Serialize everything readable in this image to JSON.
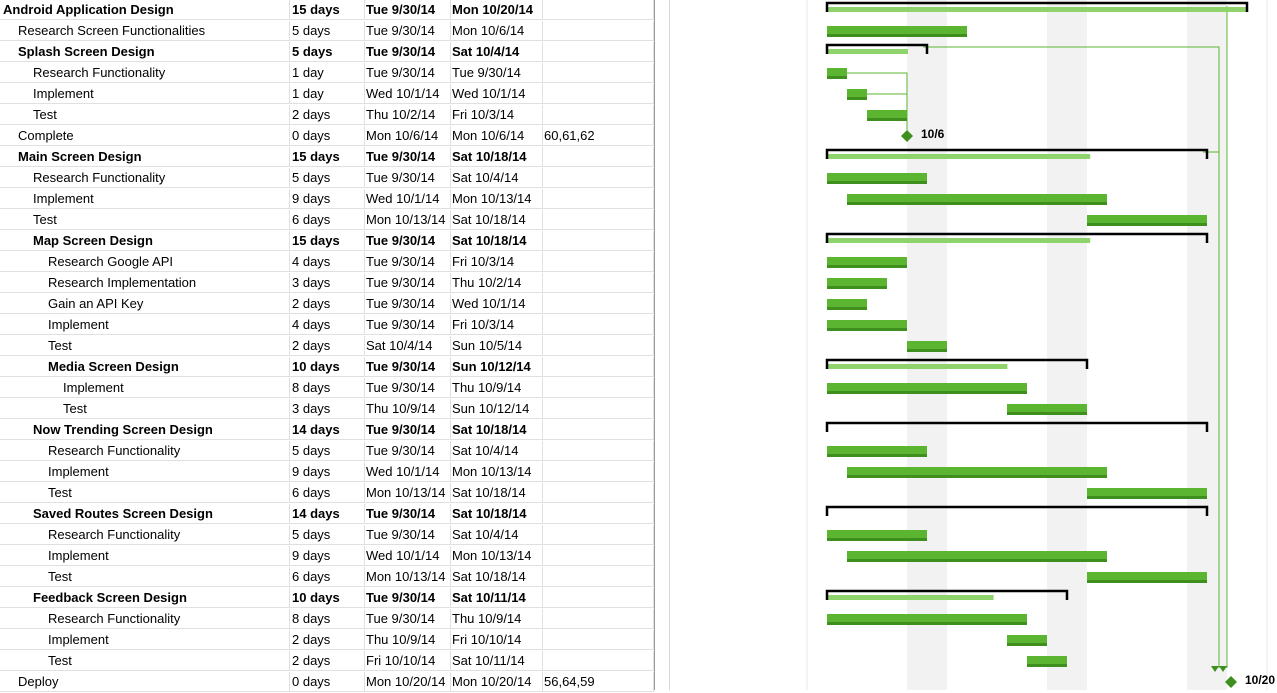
{
  "tasks": [
    {
      "name": "Android Application Design",
      "indent": 0,
      "summary": true,
      "duration": "15 days",
      "start": "Tue 9/30/14",
      "finish": "Mon 10/20/14",
      "pred": ""
    },
    {
      "name": "Research Screen Functionalities",
      "indent": 1,
      "summary": false,
      "duration": "5 days",
      "start": "Tue 9/30/14",
      "finish": "Mon 10/6/14",
      "pred": ""
    },
    {
      "name": "Splash Screen Design",
      "indent": 1,
      "summary": true,
      "duration": "5 days",
      "start": "Tue 9/30/14",
      "finish": "Sat 10/4/14",
      "pred": ""
    },
    {
      "name": "Research Functionality",
      "indent": 2,
      "summary": false,
      "duration": "1 day",
      "start": "Tue 9/30/14",
      "finish": "Tue 9/30/14",
      "pred": ""
    },
    {
      "name": "Implement",
      "indent": 2,
      "summary": false,
      "duration": "1 day",
      "start": "Wed 10/1/14",
      "finish": "Wed 10/1/14",
      "pred": ""
    },
    {
      "name": "Test",
      "indent": 2,
      "summary": false,
      "duration": "2 days",
      "start": "Thu 10/2/14",
      "finish": "Fri 10/3/14",
      "pred": ""
    },
    {
      "name": "Complete",
      "indent": 1,
      "summary": false,
      "duration": "0 days",
      "start": "Mon 10/6/14",
      "finish": "Mon 10/6/14",
      "pred": "60,61,62"
    },
    {
      "name": "Main Screen Design",
      "indent": 1,
      "summary": true,
      "duration": "15 days",
      "start": "Tue 9/30/14",
      "finish": "Sat 10/18/14",
      "pred": ""
    },
    {
      "name": "Research Functionality",
      "indent": 2,
      "summary": false,
      "duration": "5 days",
      "start": "Tue 9/30/14",
      "finish": "Sat 10/4/14",
      "pred": ""
    },
    {
      "name": "Implement",
      "indent": 2,
      "summary": false,
      "duration": "9 days",
      "start": "Wed 10/1/14",
      "finish": "Mon 10/13/14",
      "pred": ""
    },
    {
      "name": "Test",
      "indent": 2,
      "summary": false,
      "duration": "6 days",
      "start": "Mon 10/13/14",
      "finish": "Sat 10/18/14",
      "pred": ""
    },
    {
      "name": "Map Screen Design",
      "indent": 2,
      "summary": true,
      "duration": "15 days",
      "start": "Tue 9/30/14",
      "finish": "Sat 10/18/14",
      "pred": ""
    },
    {
      "name": "Research Google API",
      "indent": 3,
      "summary": false,
      "duration": "4 days",
      "start": "Tue 9/30/14",
      "finish": "Fri 10/3/14",
      "pred": ""
    },
    {
      "name": "Research Implementation",
      "indent": 3,
      "summary": false,
      "duration": "3 days",
      "start": "Tue 9/30/14",
      "finish": "Thu 10/2/14",
      "pred": ""
    },
    {
      "name": "Gain an API Key",
      "indent": 3,
      "summary": false,
      "duration": "2 days",
      "start": "Tue 9/30/14",
      "finish": "Wed 10/1/14",
      "pred": ""
    },
    {
      "name": "Implement",
      "indent": 3,
      "summary": false,
      "duration": "4 days",
      "start": "Tue 9/30/14",
      "finish": "Fri 10/3/14",
      "pred": ""
    },
    {
      "name": "Test",
      "indent": 3,
      "summary": false,
      "duration": "2 days",
      "start": "Sat 10/4/14",
      "finish": "Sun 10/5/14",
      "pred": ""
    },
    {
      "name": "Media Screen Design",
      "indent": 3,
      "summary": true,
      "duration": "10 days",
      "start": "Tue 9/30/14",
      "finish": "Sun 10/12/14",
      "pred": ""
    },
    {
      "name": "Implement",
      "indent": 4,
      "summary": false,
      "duration": "8 days",
      "start": "Tue 9/30/14",
      "finish": "Thu 10/9/14",
      "pred": ""
    },
    {
      "name": "Test",
      "indent": 4,
      "summary": false,
      "duration": "3 days",
      "start": "Thu 10/9/14",
      "finish": "Sun 10/12/14",
      "pred": ""
    },
    {
      "name": "Now Trending Screen Design",
      "indent": 2,
      "summary": true,
      "duration": "14 days",
      "start": "Tue 9/30/14",
      "finish": "Sat 10/18/14",
      "pred": ""
    },
    {
      "name": "Research Functionality",
      "indent": 3,
      "summary": false,
      "duration": "5 days",
      "start": "Tue 9/30/14",
      "finish": "Sat 10/4/14",
      "pred": ""
    },
    {
      "name": "Implement",
      "indent": 3,
      "summary": false,
      "duration": "9 days",
      "start": "Wed 10/1/14",
      "finish": "Mon 10/13/14",
      "pred": ""
    },
    {
      "name": "Test",
      "indent": 3,
      "summary": false,
      "duration": "6 days",
      "start": "Mon 10/13/14",
      "finish": "Sat 10/18/14",
      "pred": ""
    },
    {
      "name": "Saved Routes Screen Design",
      "indent": 2,
      "summary": true,
      "duration": "14 days",
      "start": "Tue 9/30/14",
      "finish": "Sat 10/18/14",
      "pred": ""
    },
    {
      "name": "Research Functionality",
      "indent": 3,
      "summary": false,
      "duration": "5 days",
      "start": "Tue 9/30/14",
      "finish": "Sat 10/4/14",
      "pred": ""
    },
    {
      "name": "Implement",
      "indent": 3,
      "summary": false,
      "duration": "9 days",
      "start": "Wed 10/1/14",
      "finish": "Mon 10/13/14",
      "pred": ""
    },
    {
      "name": "Test",
      "indent": 3,
      "summary": false,
      "duration": "6 days",
      "start": "Mon 10/13/14",
      "finish": "Sat 10/18/14",
      "pred": ""
    },
    {
      "name": "Feedback Screen Design",
      "indent": 2,
      "summary": true,
      "duration": "10 days",
      "start": "Tue 9/30/14",
      "finish": "Sat 10/11/14",
      "pred": ""
    },
    {
      "name": "Research Functionality",
      "indent": 3,
      "summary": false,
      "duration": "8 days",
      "start": "Tue 9/30/14",
      "finish": "Thu 10/9/14",
      "pred": ""
    },
    {
      "name": "Implement",
      "indent": 3,
      "summary": false,
      "duration": "2 days",
      "start": "Thu 10/9/14",
      "finish": "Fri 10/10/14",
      "pred": ""
    },
    {
      "name": "Test",
      "indent": 3,
      "summary": false,
      "duration": "2 days",
      "start": "Fri 10/10/14",
      "finish": "Sat 10/11/14",
      "pred": ""
    },
    {
      "name": "Deploy",
      "indent": 1,
      "summary": false,
      "duration": "0 days",
      "start": "Mon 10/20/14",
      "finish": "Mon 10/20/14",
      "pred": "56,64,59"
    }
  ],
  "gantt": {
    "colors": {
      "task": "#5cb531",
      "task_dark": "#3f8f1e",
      "summary_fill": "#8ed36b",
      "bracket": "#000000",
      "link": "#5cb531",
      "weekend": "#f2f2f2"
    },
    "timeline_start": "Tue 9/30/14",
    "milestones": [
      {
        "row": 6,
        "label": "10/6"
      },
      {
        "row": 32,
        "label": "10/20"
      }
    ]
  }
}
